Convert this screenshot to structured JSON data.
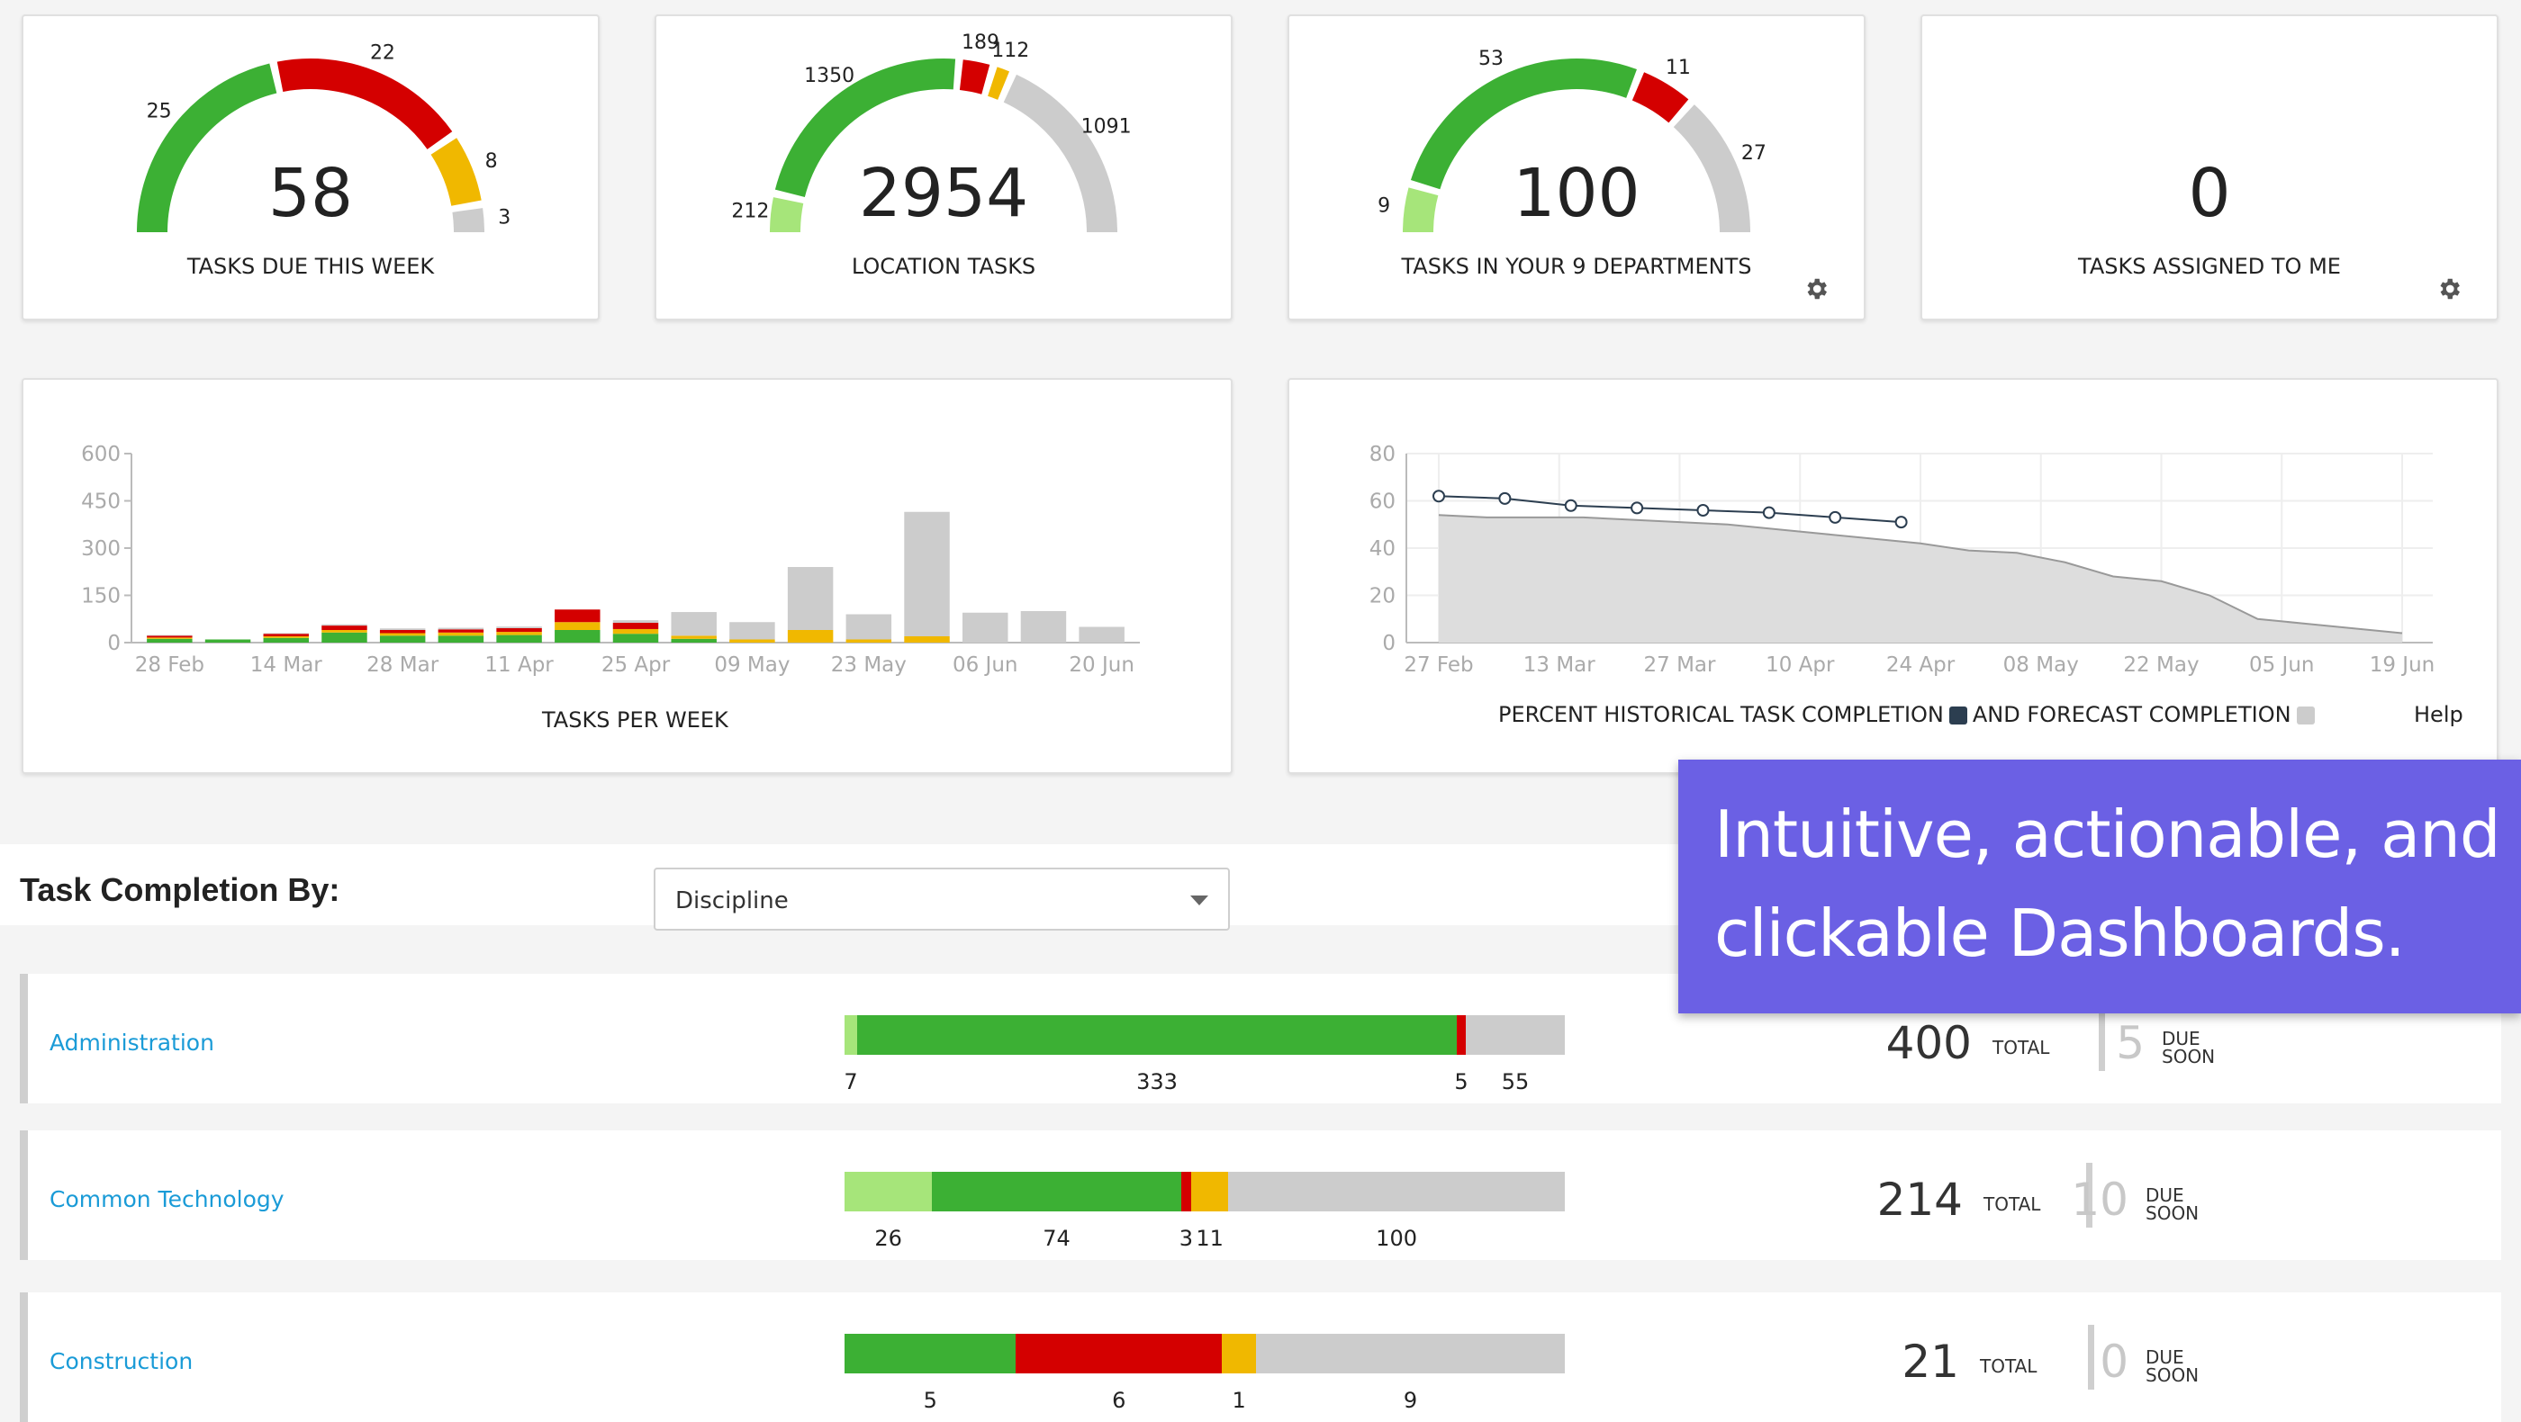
{
  "gauges": [
    {
      "id": "due-week",
      "value": "58",
      "label": "TASKS DUE THIS WEEK",
      "gear": false,
      "segments": [
        {
          "v": 25,
          "label": "25",
          "color": "#3cb034"
        },
        {
          "v": 22,
          "label": "22",
          "color": "#d40000"
        },
        {
          "v": 8,
          "label": "8",
          "color": "#f0b800"
        },
        {
          "v": 3,
          "label": "3",
          "color": "#cccccc"
        }
      ]
    },
    {
      "id": "location",
      "value": "2954",
      "label": "LOCATION TASKS",
      "gear": false,
      "segments": [
        {
          "v": 212,
          "label": "212",
          "color": "#a6e57a"
        },
        {
          "v": 1350,
          "label": "1350",
          "color": "#3cb034"
        },
        {
          "v": 189,
          "label": "189",
          "color": "#d40000"
        },
        {
          "v": 112,
          "label": "112",
          "color": "#f0b800"
        },
        {
          "v": 1091,
          "label": "1091",
          "color": "#cccccc"
        }
      ]
    },
    {
      "id": "departments",
      "value": "100",
      "label": "TASKS IN YOUR 9 DEPARTMENTS",
      "gear": true,
      "segments": [
        {
          "v": 9,
          "label": "9",
          "color": "#a6e57a"
        },
        {
          "v": 53,
          "label": "53",
          "color": "#3cb034"
        },
        {
          "v": 11,
          "label": "11",
          "color": "#d40000"
        },
        {
          "v": 27,
          "label": "27",
          "color": "#cccccc"
        }
      ]
    },
    {
      "id": "assigned",
      "value": "0",
      "label": "TASKS ASSIGNED TO ME",
      "gear": true,
      "segments": []
    }
  ],
  "chart_data": [
    {
      "type": "bar",
      "title": "TASKS PER WEEK",
      "ylim": [
        0,
        600
      ],
      "yticks": [
        "0",
        "150",
        "300",
        "450",
        "600"
      ],
      "x_tick_labels": [
        "28 Feb",
        "14 Mar",
        "28 Mar",
        "11 Apr",
        "25 Apr",
        "09 May",
        "23 May",
        "06 Jun",
        "20 Jun"
      ],
      "categories": [
        "28 Feb",
        "07 Mar",
        "14 Mar",
        "21 Mar",
        "28 Mar",
        "04 Apr",
        "11 Apr",
        "18 Apr",
        "25 Apr",
        "02 May",
        "09 May",
        "16 May",
        "23 May",
        "30 May",
        "06 Jun",
        "13 Jun",
        "20 Jun"
      ],
      "series": [
        {
          "color": "#3cb034",
          "values": [
            12,
            10,
            15,
            32,
            22,
            22,
            24,
            40,
            28,
            12,
            0,
            0,
            0,
            0,
            0,
            0,
            0
          ]
        },
        {
          "color": "#f0b800",
          "values": [
            4,
            0,
            5,
            8,
            8,
            10,
            10,
            25,
            15,
            10,
            10,
            40,
            10,
            20,
            0,
            0,
            0
          ]
        },
        {
          "color": "#d40000",
          "values": [
            6,
            0,
            8,
            14,
            10,
            10,
            12,
            40,
            20,
            0,
            0,
            0,
            0,
            0,
            0,
            0,
            0
          ]
        },
        {
          "color": "#cccccc",
          "values": [
            2,
            0,
            2,
            4,
            5,
            5,
            5,
            0,
            8,
            75,
            55,
            200,
            80,
            395,
            95,
            100,
            50
          ]
        }
      ]
    },
    {
      "type": "line",
      "caption_left": "PERCENT HISTORICAL TASK COMPLETION",
      "caption_mid": "AND FORECAST COMPLETION",
      "help": "Help",
      "ylim": [
        0,
        80
      ],
      "yticks": [
        "0",
        "20",
        "40",
        "60",
        "80"
      ],
      "x_tick_labels": [
        "27 Feb",
        "13 Mar",
        "27 Mar",
        "10 Apr",
        "24 Apr",
        "08 May",
        "22 May",
        "05 Jun",
        "19 Jun"
      ],
      "historical_color": "#2c3e50",
      "forecast_color": "#cccccc",
      "historical": [
        62,
        61,
        58,
        57,
        56,
        55,
        53,
        51
      ],
      "forecast": [
        54,
        53,
        53,
        53,
        52,
        51,
        50,
        48,
        46,
        44,
        42,
        39,
        38,
        34,
        28,
        26,
        20,
        10,
        8,
        6,
        4
      ]
    }
  ],
  "section": {
    "title": "Task Completion By:",
    "select_value": "Discipline"
  },
  "rows": [
    {
      "name": "Administration",
      "total": "400",
      "total_label": "TOTAL",
      "due": "5",
      "due_line1": "DUE",
      "due_line2": "SOON",
      "segments": [
        {
          "v": 7,
          "label": "7",
          "color": "#a6e57a"
        },
        {
          "v": 333,
          "label": "333",
          "color": "#3cb034"
        },
        {
          "v": 5,
          "label": "5",
          "color": "#d40000"
        },
        {
          "v": 55,
          "label": "55",
          "color": "#cccccc"
        }
      ]
    },
    {
      "name": "Common Technology",
      "total": "214",
      "total_label": "TOTAL",
      "due": "10",
      "due_line1": "DUE",
      "due_line2": "SOON",
      "segments": [
        {
          "v": 26,
          "label": "26",
          "color": "#a6e57a"
        },
        {
          "v": 74,
          "label": "74",
          "color": "#3cb034"
        },
        {
          "v": 3,
          "label": "3",
          "color": "#d40000"
        },
        {
          "v": 11,
          "label": "11",
          "color": "#f0b800"
        },
        {
          "v": 100,
          "label": "100",
          "color": "#cccccc"
        }
      ]
    },
    {
      "name": "Construction",
      "total": "21",
      "total_label": "TOTAL",
      "due": "0",
      "due_line1": "DUE",
      "due_line2": "SOON",
      "segments": [
        {
          "v": 5,
          "label": "5",
          "color": "#3cb034"
        },
        {
          "v": 6,
          "label": "6",
          "color": "#d40000"
        },
        {
          "v": 1,
          "label": "1",
          "color": "#f0b800"
        },
        {
          "v": 9,
          "label": "9",
          "color": "#cccccc"
        }
      ]
    }
  ],
  "promo": {
    "text": "Intuitive, actionable, and clickable Dashboards."
  }
}
